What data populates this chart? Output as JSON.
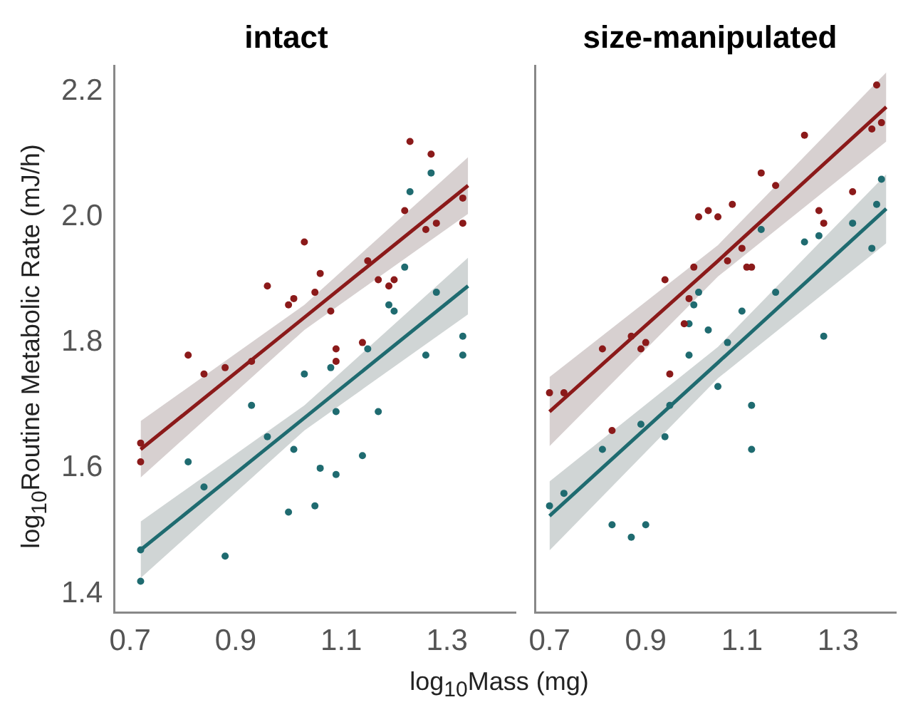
{
  "chart_data": [
    {
      "type": "scatter",
      "title": "intact",
      "xlabel": "log$_{10}$Mass (mg)",
      "ylabel": "log$_{10}$Routine Metabolic Rate (mJ/h)",
      "xlim": [
        0.67,
        1.43
      ],
      "xticks": [
        0.7,
        0.9,
        1.1,
        1.3
      ],
      "ylim": [
        1.37,
        2.24
      ],
      "yticks": [
        1.4,
        1.6,
        1.8,
        {
          "value": 2,
          "label": "2.0"
        },
        2.2
      ],
      "grid": false,
      "marker": "circle",
      "series": [
        {
          "color": "#8b1a1a",
          "x": [
            0.72,
            0.72,
            0.81,
            0.84,
            0.88,
            0.93,
            0.96,
            1.0,
            1.01,
            1.03,
            1.05,
            1.06,
            1.08,
            1.09,
            1.09,
            1.14,
            1.15,
            1.17,
            1.19,
            1.2,
            1.22,
            1.23,
            1.26,
            1.27,
            1.28,
            1.33,
            1.33
          ],
          "values": [
            1.64,
            1.61,
            1.78,
            1.75,
            1.76,
            1.77,
            1.89,
            1.86,
            1.87,
            1.96,
            1.88,
            1.91,
            1.85,
            1.79,
            1.77,
            1.8,
            1.93,
            1.9,
            1.89,
            1.9,
            2.01,
            2.12,
            1.98,
            2.1,
            1.99,
            1.99,
            2.03
          ]
        },
        {
          "color": "#1f6b70",
          "x": [
            0.72,
            0.72,
            0.81,
            0.84,
            0.88,
            0.93,
            0.96,
            1.0,
            1.01,
            1.03,
            1.05,
            1.06,
            1.08,
            1.09,
            1.09,
            1.14,
            1.15,
            1.17,
            1.19,
            1.2,
            1.22,
            1.23,
            1.26,
            1.27,
            1.28,
            1.33,
            1.33
          ],
          "values": [
            1.47,
            1.42,
            1.61,
            1.57,
            1.46,
            1.7,
            1.65,
            1.53,
            1.63,
            1.75,
            1.54,
            1.6,
            1.76,
            1.69,
            1.59,
            1.62,
            1.79,
            1.69,
            1.86,
            1.85,
            1.92,
            2.04,
            1.78,
            2.07,
            1.88,
            1.78,
            1.81
          ]
        },
        {
          "type": "line",
          "marker": "none",
          "color": "#8b1a1a",
          "x": [
            0.72,
            1.03,
            1.34
          ],
          "values": [
            1.63,
            1.84,
            2.05
          ],
          "lower": [
            1.585,
            1.82,
            2.005
          ],
          "upper": [
            1.675,
            1.86,
            2.095
          ]
        },
        {
          "type": "line",
          "marker": "none",
          "color": "#1f6b70",
          "x": [
            0.72,
            1.03,
            1.34
          ],
          "values": [
            1.47,
            1.68,
            1.89
          ],
          "lower": [
            1.425,
            1.66,
            1.845
          ],
          "upper": [
            1.515,
            1.7,
            1.935
          ]
        }
      ]
    },
    {
      "type": "scatter",
      "title": "size-manipulated",
      "xlim": [
        0.67,
        1.42
      ],
      "xticks": [
        0.7,
        0.9,
        1.1,
        1.3
      ],
      "ylim": [
        1.37,
        2.24
      ],
      "yticks": [
        1.4,
        1.6,
        1.8,
        2.0,
        2.2
      ],
      "grid": false,
      "marker": "circle",
      "tick_labels": "x",
      "series": [
        {
          "color": "#8b1a1a",
          "x": [
            0.7,
            0.73,
            0.81,
            0.83,
            0.87,
            0.89,
            0.9,
            0.94,
            0.95,
            0.98,
            0.99,
            1.0,
            1.01,
            1.03,
            1.05,
            1.07,
            1.08,
            1.1,
            1.11,
            1.12,
            1.14,
            1.17,
            1.23,
            1.26,
            1.27,
            1.33,
            1.37,
            1.38,
            1.39
          ],
          "values": [
            1.72,
            1.72,
            1.79,
            1.66,
            1.81,
            1.79,
            1.8,
            1.9,
            1.75,
            1.83,
            1.87,
            1.92,
            2.0,
            2.01,
            2.0,
            1.93,
            2.02,
            1.95,
            1.92,
            1.92,
            2.07,
            2.05,
            2.13,
            2.01,
            1.99,
            2.04,
            2.14,
            2.21,
            2.15
          ]
        },
        {
          "color": "#1f6b70",
          "x": [
            0.7,
            0.73,
            0.81,
            0.83,
            0.87,
            0.89,
            0.9,
            0.94,
            0.95,
            0.99,
            0.99,
            1.0,
            1.01,
            1.03,
            1.05,
            1.07,
            1.1,
            1.12,
            1.12,
            1.14,
            1.17,
            1.23,
            1.26,
            1.27,
            1.33,
            1.37,
            1.38,
            1.39
          ],
          "values": [
            1.54,
            1.56,
            1.63,
            1.51,
            1.49,
            1.67,
            1.51,
            1.65,
            1.7,
            1.78,
            1.83,
            1.86,
            1.88,
            1.82,
            1.73,
            1.8,
            1.85,
            1.63,
            1.7,
            1.98,
            1.88,
            1.96,
            1.97,
            1.81,
            1.99,
            1.95,
            2.02,
            2.06
          ]
        },
        {
          "type": "line",
          "marker": "none",
          "color": "#8b1a1a",
          "x": [
            0.7,
            1.05,
            1.4
          ],
          "values": [
            1.69,
            1.93,
            2.175
          ],
          "lower": [
            1.635,
            1.905,
            2.12
          ],
          "upper": [
            1.745,
            1.955,
            2.23
          ]
        },
        {
          "type": "line",
          "marker": "none",
          "color": "#1f6b70",
          "x": [
            0.7,
            1.05,
            1.4
          ],
          "values": [
            1.524,
            1.768,
            2.013
          ],
          "lower": [
            1.469,
            1.743,
            1.958
          ],
          "upper": [
            1.579,
            1.793,
            2.068
          ]
        }
      ]
    }
  ]
}
